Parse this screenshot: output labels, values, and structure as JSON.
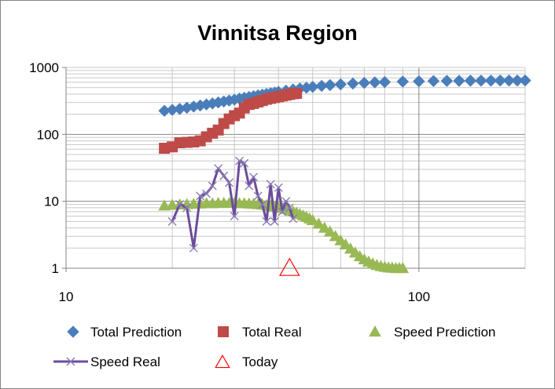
{
  "chart_data": {
    "type": "scatter",
    "title": "Vinnitsa Region",
    "xscale": "log",
    "yscale": "log",
    "xlim": [
      10,
      200
    ],
    "ylim": [
      1,
      1000
    ],
    "xticks": [
      10,
      100
    ],
    "yticks": [
      1,
      10,
      100,
      1000
    ],
    "xtick_labels": [
      "10",
      "100"
    ],
    "ytick_labels": [
      "1",
      "10",
      "100",
      "1000"
    ],
    "grid": "major and minor",
    "legend": "bottom",
    "series": [
      {
        "name": "Total Prediction",
        "marker": "diamond",
        "color": "#4a7ebb",
        "x": [
          19,
          20,
          21,
          22,
          23,
          24,
          25,
          26,
          27,
          28,
          29,
          30,
          31,
          32,
          33,
          34,
          35,
          36,
          37,
          38,
          39,
          40,
          42,
          44,
          46,
          48,
          50,
          53,
          56,
          60,
          65,
          70,
          75,
          80,
          90,
          100,
          110,
          120,
          130,
          140,
          150,
          160,
          170,
          180,
          190,
          200
        ],
        "y": [
          225,
          232,
          240,
          250,
          260,
          270,
          280,
          290,
          300,
          310,
          320,
          330,
          342,
          352,
          362,
          372,
          382,
          392,
          402,
          412,
          422,
          432,
          450,
          468,
          484,
          498,
          512,
          530,
          545,
          560,
          575,
          588,
          598,
          605,
          615,
          622,
          627,
          630,
          632,
          634,
          635,
          636,
          637,
          638,
          638,
          639
        ]
      },
      {
        "name": "Total Real",
        "marker": "square",
        "color": "#be4b48",
        "x": [
          19,
          20,
          21,
          22,
          23,
          24,
          25,
          26,
          27,
          28,
          29,
          30,
          31,
          32,
          33,
          34,
          35,
          36,
          37,
          38,
          39,
          40,
          41,
          42,
          43,
          44,
          45
        ],
        "y": [
          62,
          65,
          75,
          76,
          77,
          80,
          92,
          104,
          116,
          145,
          170,
          190,
          208,
          248,
          280,
          290,
          305,
          320,
          335,
          345,
          355,
          365,
          375,
          385,
          395,
          405,
          410
        ]
      },
      {
        "name": "Speed Prediction",
        "marker": "triangle",
        "color": "#98b954",
        "x": [
          19,
          20,
          21,
          22,
          23,
          24,
          25,
          26,
          27,
          28,
          29,
          30,
          31,
          32,
          33,
          34,
          35,
          36,
          37,
          38,
          39,
          40,
          41,
          42,
          43,
          44,
          45,
          46,
          47,
          48,
          49,
          50,
          52,
          54,
          56,
          58,
          60,
          62,
          64,
          66,
          68,
          70,
          72,
          74,
          76,
          78,
          80,
          82,
          84,
          86,
          88,
          90
        ],
        "y": [
          8.6,
          8.8,
          8.9,
          9.0,
          9.1,
          9.2,
          9.3,
          9.3,
          9.4,
          9.4,
          9.4,
          9.4,
          9.3,
          9.3,
          9.2,
          9.1,
          9.0,
          8.9,
          8.7,
          8.5,
          8.3,
          8.1,
          7.9,
          7.6,
          7.3,
          7.0,
          6.7,
          6.4,
          6.1,
          5.8,
          5.5,
          5.2,
          4.6,
          4.0,
          3.5,
          3.0,
          2.6,
          2.25,
          1.95,
          1.7,
          1.5,
          1.35,
          1.25,
          1.17,
          1.11,
          1.07,
          1.04,
          1.02,
          1.01,
          1.0,
          1.0,
          1.0
        ]
      },
      {
        "name": "Speed Real",
        "marker": "x-line",
        "color": "#6b4c9a",
        "x": [
          20,
          21,
          22,
          23,
          24,
          25,
          26,
          27,
          28,
          29,
          30,
          31,
          32,
          33,
          34,
          35,
          36,
          37,
          38,
          39,
          40,
          41,
          42,
          43,
          44
        ],
        "y": [
          5,
          9,
          8,
          2,
          12,
          13,
          17,
          31,
          24,
          19,
          6,
          40,
          37,
          17,
          23,
          12,
          9,
          5,
          18,
          5,
          16,
          7,
          10,
          8,
          5.5
        ]
      },
      {
        "name": "Today",
        "marker": "triangle-open",
        "color": "#ff0000",
        "x": [
          43
        ],
        "y": [
          1
        ]
      }
    ]
  }
}
